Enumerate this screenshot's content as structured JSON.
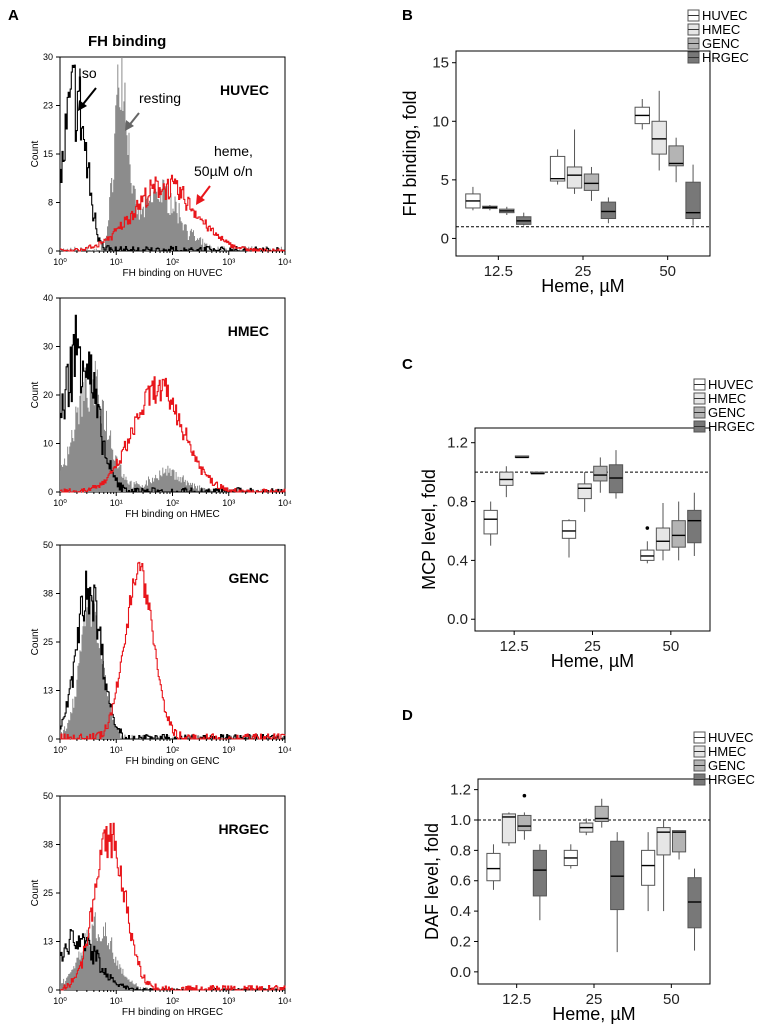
{
  "colors": {
    "iso": "#000000",
    "resting": "#8c8c8c",
    "heme": "#e8161b",
    "huvec_box": "#ffffff",
    "hmec_box": "#e6e6e6",
    "genc_box": "#b4b4b4",
    "hrgec_box": "#787878"
  },
  "panel_a": {
    "label": "A",
    "title": "FH binding",
    "annotations": {
      "iso": "Iso",
      "resting": "resting",
      "heme_line1": "heme,",
      "heme_line2": "50µM o/n"
    }
  },
  "legend": [
    "HUVEC",
    "HMEC",
    "GENC",
    "HRGEC"
  ],
  "chart_data": [
    {
      "id": "A1",
      "type": "histogram",
      "cell": "HUVEC",
      "xlabel": "FH binding on HUVEC",
      "ylabel": "Count",
      "xscale": "log",
      "xlim": [
        1,
        10000
      ],
      "ylim": [
        0,
        30
      ],
      "xticks": [
        "10⁰",
        "10¹",
        "10²",
        "10³",
        "10⁴"
      ],
      "yticks": [
        "0",
        "8",
        "15",
        "23",
        "30"
      ],
      "series": [
        {
          "name": "Iso",
          "color": "iso",
          "style": "line",
          "peak_x": 1.8,
          "width_log": 0.2,
          "peak_y": 24,
          "noise": 0.3
        },
        {
          "name": "resting",
          "color": "resting",
          "style": "fill",
          "peak_x": 12,
          "width_log": 0.12,
          "peak_y": 27,
          "noise": 0.25,
          "shoulder_x": 60,
          "shoulder_width_log": 0.35,
          "shoulder_y": 9
        },
        {
          "name": "heme, 50µM o/n",
          "color": "heme",
          "style": "line",
          "peak_x": 70,
          "width_log": 0.55,
          "peak_y": 10,
          "noise": 0.2
        }
      ]
    },
    {
      "id": "A2",
      "type": "histogram",
      "cell": "HMEC",
      "xlabel": "FH binding on HMEC",
      "ylabel": "Count",
      "xscale": "log",
      "xlim": [
        1,
        10000
      ],
      "ylim": [
        0,
        40
      ],
      "xticks": [
        "10⁰",
        "10¹",
        "10²",
        "10³",
        "10⁴"
      ],
      "yticks": [
        "0",
        "10",
        "20",
        "30",
        "40"
      ],
      "series": [
        {
          "name": "Iso",
          "color": "iso",
          "style": "line",
          "peak_x": 2.2,
          "width_log": 0.28,
          "peak_y": 30,
          "noise": 0.3
        },
        {
          "name": "resting",
          "color": "resting",
          "style": "fill",
          "peak_x": 3.5,
          "width_log": 0.3,
          "peak_y": 22,
          "noise": 0.25,
          "shoulder_x": 80,
          "shoulder_width_log": 0.3,
          "shoulder_y": 4
        },
        {
          "name": "heme, 50µM o/n",
          "color": "heme",
          "style": "line",
          "peak_x": 55,
          "width_log": 0.45,
          "peak_y": 21,
          "noise": 0.15
        }
      ]
    },
    {
      "id": "A3",
      "type": "histogram",
      "cell": "GENC",
      "xlabel": "FH binding on GENC",
      "ylabel": "Count",
      "xscale": "log",
      "xlim": [
        1,
        10000
      ],
      "ylim": [
        0,
        50
      ],
      "xticks": [
        "10⁰",
        "10¹",
        "10²",
        "10³",
        "10⁴"
      ],
      "yticks": [
        "0",
        "13",
        "25",
        "38",
        "50"
      ],
      "series": [
        {
          "name": "Iso",
          "color": "iso",
          "style": "line",
          "peak_x": 3.2,
          "width_log": 0.22,
          "peak_y": 39,
          "noise": 0.18
        },
        {
          "name": "resting",
          "color": "resting",
          "style": "fill",
          "peak_x": 3.5,
          "width_log": 0.2,
          "peak_y": 34,
          "noise": 0.15
        },
        {
          "name": "heme, 50µM o/n",
          "color": "heme",
          "style": "line",
          "peak_x": 25,
          "width_log": 0.25,
          "peak_y": 44,
          "noise": 0.1
        }
      ]
    },
    {
      "id": "A4",
      "type": "histogram",
      "cell": "HRGEC",
      "xlabel": "FH binding on HRGEC",
      "ylabel": "Count",
      "xscale": "log",
      "xlim": [
        1,
        10000
      ],
      "ylim": [
        0,
        50
      ],
      "xticks": [
        "10⁰",
        "10¹",
        "10²",
        "10³",
        "10⁴"
      ],
      "yticks": [
        "0",
        "13",
        "25",
        "38",
        "50"
      ],
      "series": [
        {
          "name": "Iso",
          "color": "iso",
          "style": "line",
          "peak_x": 2,
          "width_log": 0.35,
          "peak_y": 13,
          "noise": 0.3
        },
        {
          "name": "resting",
          "color": "resting",
          "style": "fill",
          "peak_x": 4.5,
          "width_log": 0.3,
          "peak_y": 16,
          "noise": 0.25
        },
        {
          "name": "heme, 50µM o/n",
          "color": "heme",
          "style": "line",
          "peak_x": 7.5,
          "width_log": 0.27,
          "peak_y": 40,
          "noise": 0.12
        }
      ]
    },
    {
      "id": "B",
      "type": "box",
      "label": "B",
      "xlabel": "Heme, µM",
      "ylabel": "FH binding, fold",
      "categories": [
        "12.5",
        "25",
        "50"
      ],
      "ylim": [
        -1.5,
        16
      ],
      "yticks": [
        0,
        5,
        10,
        15
      ],
      "ytick_labels": [
        "0",
        "5",
        "10",
        "15"
      ],
      "reference_line": 1,
      "series": [
        {
          "name": "HUVEC",
          "color": "huvec_box",
          "boxes": [
            {
              "min": 2.4,
              "q1": 2.6,
              "median": 3.2,
              "q3": 3.8,
              "max": 4.4
            },
            {
              "min": 4.6,
              "q1": 4.9,
              "median": 5.1,
              "q3": 7.0,
              "max": 7.6
            },
            {
              "min": 9.3,
              "q1": 9.8,
              "median": 10.5,
              "q3": 11.2,
              "max": 11.9
            }
          ]
        },
        {
          "name": "HMEC",
          "color": "hmec_box",
          "boxes": [
            {
              "min": 2.4,
              "q1": 2.55,
              "median": 2.65,
              "q3": 2.75,
              "max": 2.85
            },
            {
              "min": 3.8,
              "q1": 4.3,
              "median": 5.4,
              "q3": 6.1,
              "max": 9.3
            },
            {
              "min": 5.8,
              "q1": 7.2,
              "median": 8.5,
              "q3": 10.0,
              "max": 12.6
            }
          ]
        },
        {
          "name": "GENC",
          "color": "genc_box",
          "boxes": [
            {
              "min": 2.0,
              "q1": 2.2,
              "median": 2.35,
              "q3": 2.5,
              "max": 2.7
            },
            {
              "min": 3.2,
              "q1": 4.1,
              "median": 4.7,
              "q3": 5.5,
              "max": 6.1
            },
            {
              "min": 4.8,
              "q1": 6.2,
              "median": 6.4,
              "q3": 7.9,
              "max": 8.6
            }
          ]
        },
        {
          "name": "HRGEC",
          "color": "hrgec_box",
          "boxes": [
            {
              "min": 1.1,
              "q1": 1.2,
              "median": 1.5,
              "q3": 1.85,
              "max": 2.2
            },
            {
              "min": 1.3,
              "q1": 1.7,
              "median": 2.3,
              "q3": 3.1,
              "max": 3.5
            },
            {
              "min": 1.1,
              "q1": 1.7,
              "median": 2.2,
              "q3": 4.8,
              "max": 6.3
            }
          ]
        }
      ]
    },
    {
      "id": "C",
      "type": "box",
      "label": "C",
      "xlabel": "Heme, µM",
      "ylabel": "MCP level, fold",
      "categories": [
        "12.5",
        "25",
        "50"
      ],
      "ylim": [
        -0.08,
        1.3
      ],
      "yticks": [
        0,
        0.4,
        0.8,
        1.2
      ],
      "ytick_labels": [
        "0.0",
        "0.4",
        "0.8",
        "1.2"
      ],
      "reference_line": 1,
      "series": [
        {
          "name": "HUVEC",
          "color": "huvec_box",
          "boxes": [
            {
              "min": 0.5,
              "q1": 0.58,
              "median": 0.68,
              "q3": 0.74,
              "max": 0.8
            },
            {
              "min": 0.42,
              "q1": 0.55,
              "median": 0.6,
              "q3": 0.67,
              "max": 0.68
            },
            {
              "min": 0.38,
              "q1": 0.4,
              "median": 0.43,
              "q3": 0.47,
              "max": 0.53,
              "outliers": [
                0.62
              ]
            }
          ]
        },
        {
          "name": "HMEC",
          "color": "hmec_box",
          "boxes": [
            {
              "min": 0.83,
              "q1": 0.91,
              "median": 0.95,
              "q3": 1.0,
              "max": 1.04
            },
            {
              "min": 0.73,
              "q1": 0.82,
              "median": 0.89,
              "q3": 0.92,
              "max": 1.0
            },
            {
              "min": 0.4,
              "q1": 0.47,
              "median": 0.53,
              "q3": 0.62,
              "max": 0.79
            }
          ]
        },
        {
          "name": "GENC",
          "color": "genc_box",
          "boxes": [
            {
              "min": 1.1,
              "q1": 1.1,
              "median": 1.1,
              "q3": 1.11,
              "max": 1.11
            },
            {
              "min": 0.86,
              "q1": 0.94,
              "median": 0.98,
              "q3": 1.04,
              "max": 1.1
            },
            {
              "min": 0.4,
              "q1": 0.49,
              "median": 0.57,
              "q3": 0.67,
              "max": 0.8
            }
          ]
        },
        {
          "name": "HRGEC",
          "color": "hrgec_box",
          "boxes": [
            {
              "min": 0.99,
              "q1": 0.99,
              "median": 0.99,
              "q3": 1.0,
              "max": 1.0
            },
            {
              "min": 0.82,
              "q1": 0.86,
              "median": 0.96,
              "q3": 1.05,
              "max": 1.15
            },
            {
              "min": 0.43,
              "q1": 0.52,
              "median": 0.67,
              "q3": 0.74,
              "max": 0.86
            }
          ]
        }
      ]
    },
    {
      "id": "D",
      "type": "box",
      "label": "D",
      "xlabel": "Heme, µM",
      "ylabel": "DAF level, fold",
      "categories": [
        "12.5",
        "25",
        "50"
      ],
      "ylim": [
        -0.08,
        1.27
      ],
      "yticks": [
        0,
        0.2,
        0.4,
        0.6,
        0.8,
        1.0,
        1.2
      ],
      "ytick_labels": [
        "0.0",
        "0.2",
        "0.4",
        "0.6",
        "0.8",
        "1.0",
        "1.2"
      ],
      "reference_line": 1,
      "series": [
        {
          "name": "HUVEC",
          "color": "huvec_box",
          "boxes": [
            {
              "min": 0.54,
              "q1": 0.6,
              "median": 0.68,
              "q3": 0.78,
              "max": 0.84
            },
            {
              "min": 0.68,
              "q1": 0.7,
              "median": 0.75,
              "q3": 0.8,
              "max": 0.84
            },
            {
              "min": 0.4,
              "q1": 0.57,
              "median": 0.7,
              "q3": 0.8,
              "max": 0.92
            }
          ]
        },
        {
          "name": "HMEC",
          "color": "hmec_box",
          "boxes": [
            {
              "min": 0.83,
              "q1": 0.85,
              "median": 1.02,
              "q3": 1.04,
              "max": 1.05
            },
            {
              "min": 0.9,
              "q1": 0.92,
              "median": 0.95,
              "q3": 0.98,
              "max": 1.01
            },
            {
              "min": 0.4,
              "q1": 0.77,
              "median": 0.92,
              "q3": 0.95,
              "max": 1.0
            }
          ]
        },
        {
          "name": "GENC",
          "color": "genc_box",
          "boxes": [
            {
              "min": 0.87,
              "q1": 0.93,
              "median": 0.96,
              "q3": 1.03,
              "max": 1.05,
              "outliers": [
                1.16
              ]
            },
            {
              "min": 0.95,
              "q1": 0.99,
              "median": 1.01,
              "q3": 1.09,
              "max": 1.14
            },
            {
              "min": 0.74,
              "q1": 0.79,
              "median": 0.92,
              "q3": 0.93,
              "max": 0.93
            }
          ]
        },
        {
          "name": "HRGEC",
          "color": "hrgec_box",
          "boxes": [
            {
              "min": 0.34,
              "q1": 0.5,
              "median": 0.67,
              "q3": 0.8,
              "max": 0.84
            },
            {
              "min": 0.13,
              "q1": 0.41,
              "median": 0.63,
              "q3": 0.86,
              "max": 0.92
            },
            {
              "min": 0.14,
              "q1": 0.29,
              "median": 0.46,
              "q3": 0.62,
              "max": 0.68
            }
          ]
        }
      ]
    }
  ]
}
